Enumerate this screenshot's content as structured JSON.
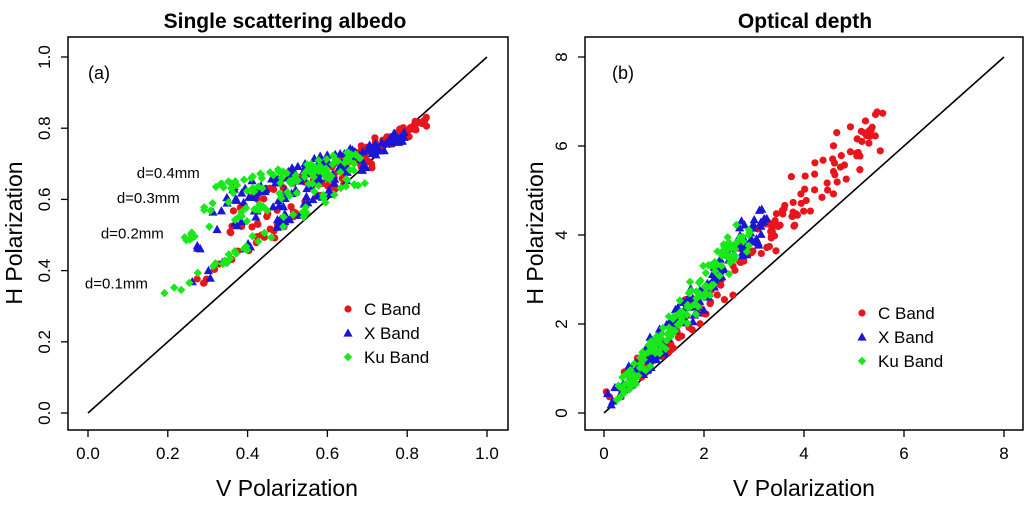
{
  "figure": {
    "colors": {
      "C Band": "#e8161c",
      "X Band": "#1a16d6",
      "Ku Band": "#19e819"
    }
  },
  "chart_data": [
    {
      "type": "scatter",
      "panel_label": "(a)",
      "title": "Single scattering albedo",
      "xlabel": "V Polarization",
      "ylabel": "H Polarization",
      "xlim": [
        0.0,
        1.0
      ],
      "ylim": [
        0.0,
        1.0
      ],
      "x_ticks": [
        "0.0",
        "0.2",
        "0.4",
        "0.6",
        "0.8",
        "1.0"
      ],
      "y_ticks": [
        "0.0",
        "0.2",
        "0.4",
        "0.6",
        "0.8",
        "1.0"
      ],
      "reference_line": "1:1",
      "legend": [
        "C Band",
        "X Band",
        "Ku Band"
      ],
      "legend_position": "bottom-right",
      "annotations": [
        {
          "text": "d=0.4mm",
          "x": 0.28,
          "y": 0.66
        },
        {
          "text": "d=0.3mm",
          "x": 0.23,
          "y": 0.59
        },
        {
          "text": "d=0.2mm",
          "x": 0.19,
          "y": 0.49
        },
        {
          "text": "d=0.1mm",
          "x": 0.15,
          "y": 0.35
        }
      ],
      "series": [
        {
          "name": "C Band",
          "marker": "circle",
          "clusters": [
            {
              "x0": 0.25,
              "y0": 0.34,
              "x1": 0.85,
              "y1": 0.82,
              "spread": 0.03
            },
            {
              "x0": 0.33,
              "y0": 0.48,
              "x1": 0.85,
              "y1": 0.82,
              "spread": 0.03
            },
            {
              "x0": 0.36,
              "y0": 0.56,
              "x1": 0.85,
              "y1": 0.82,
              "spread": 0.025
            },
            {
              "x0": 0.4,
              "y0": 0.6,
              "x1": 0.85,
              "y1": 0.82,
              "spread": 0.025
            }
          ]
        },
        {
          "name": "X Band",
          "marker": "triangle",
          "clusters": [
            {
              "x0": 0.22,
              "y0": 0.33,
              "x1": 0.79,
              "y1": 0.78,
              "spread": 0.03
            },
            {
              "x0": 0.25,
              "y0": 0.46,
              "x1": 0.79,
              "y1": 0.78,
              "spread": 0.03
            },
            {
              "x0": 0.29,
              "y0": 0.56,
              "x1": 0.79,
              "y1": 0.78,
              "spread": 0.025
            },
            {
              "x0": 0.32,
              "y0": 0.61,
              "x1": 0.79,
              "y1": 0.78,
              "spread": 0.025
            }
          ]
        },
        {
          "name": "Ku Band",
          "marker": "diamond",
          "clusters": [
            {
              "x0": 0.18,
              "y0": 0.32,
              "x1": 0.68,
              "y1": 0.66,
              "spread": 0.03
            },
            {
              "x0": 0.22,
              "y0": 0.47,
              "x1": 0.68,
              "y1": 0.7,
              "spread": 0.03
            },
            {
              "x0": 0.27,
              "y0": 0.57,
              "x1": 0.68,
              "y1": 0.72,
              "spread": 0.025
            },
            {
              "x0": 0.32,
              "y0": 0.63,
              "x1": 0.68,
              "y1": 0.73,
              "spread": 0.025
            }
          ]
        }
      ]
    },
    {
      "type": "scatter",
      "panel_label": "(b)",
      "title": "Optical depth",
      "xlabel": "V Polarization",
      "ylabel": "H Polarization",
      "xlim": [
        0,
        8
      ],
      "ylim": [
        0,
        8
      ],
      "x_ticks": [
        "0",
        "2",
        "4",
        "6",
        "8"
      ],
      "y_ticks": [
        "0",
        "2",
        "4",
        "6",
        "8"
      ],
      "reference_line": "1:1",
      "legend": [
        "C Band",
        "X Band",
        "Ku Band"
      ],
      "legend_position": "bottom-right",
      "annotations": [],
      "series": [
        {
          "name": "C Band",
          "marker": "circle",
          "clusters": [
            {
              "x0": 0.15,
              "y0": 0.2,
              "x1": 5.5,
              "y1": 6.8,
              "spread": 0.45,
              "fan": 0.35
            }
          ]
        },
        {
          "name": "X Band",
          "marker": "triangle",
          "clusters": [
            {
              "x0": 0.15,
              "y0": 0.2,
              "x1": 3.2,
              "y1": 4.5,
              "spread": 0.35,
              "fan": 0.25
            }
          ]
        },
        {
          "name": "Ku Band",
          "marker": "diamond",
          "clusters": [
            {
              "x0": 0.15,
              "y0": 0.2,
              "x1": 2.8,
              "y1": 4.1,
              "spread": 0.3,
              "fan": 0.25
            }
          ]
        }
      ]
    }
  ]
}
